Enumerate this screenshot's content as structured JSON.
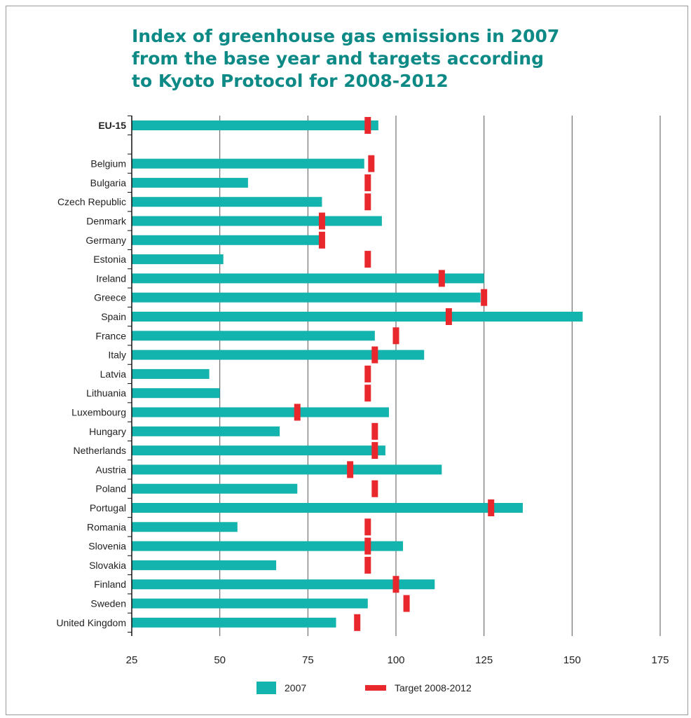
{
  "chart_data": {
    "type": "bar",
    "orientation": "horizontal",
    "title_lines": [
      "Index of greenhouse gas emissions in 2007",
      "from the base year and targets according",
      "to Kyoto Protocol for 2008-2012"
    ],
    "categories": [
      "EU-15",
      "",
      "Belgium",
      "Bulgaria",
      "Czech Republic",
      "Denmark",
      "Germany",
      "Estonia",
      "Ireland",
      "Greece",
      "Spain",
      "France",
      "Italy",
      "Latvia",
      "Lithuania",
      "Luxembourg",
      "Hungary",
      "Netherlands",
      "Austria",
      "Poland",
      "Portugal",
      "Romania",
      "Slovenia",
      "Slovakia",
      "Finland",
      "Sweden",
      "United Kingdom"
    ],
    "series": [
      {
        "name": "2007",
        "color": "#13b3ae",
        "values": [
          95,
          null,
          91,
          58,
          79,
          96,
          79,
          51,
          125,
          124,
          153,
          94,
          108,
          47,
          50,
          98,
          67,
          97,
          113,
          72,
          136,
          55,
          102,
          66,
          111,
          92,
          83
        ]
      },
      {
        "name": "Target 2008-2012",
        "color": "#e8282d",
        "values": [
          92,
          null,
          93,
          92,
          92,
          79,
          79,
          92,
          113,
          125,
          115,
          100,
          94,
          92,
          92,
          72,
          94,
          94,
          87,
          94,
          127,
          92,
          92,
          92,
          100,
          103,
          89
        ]
      }
    ],
    "xlim": [
      25,
      175
    ],
    "xticks": [
      25,
      50,
      75,
      100,
      125,
      150,
      175
    ],
    "grid": "vertical",
    "legend_position": "bottom"
  }
}
